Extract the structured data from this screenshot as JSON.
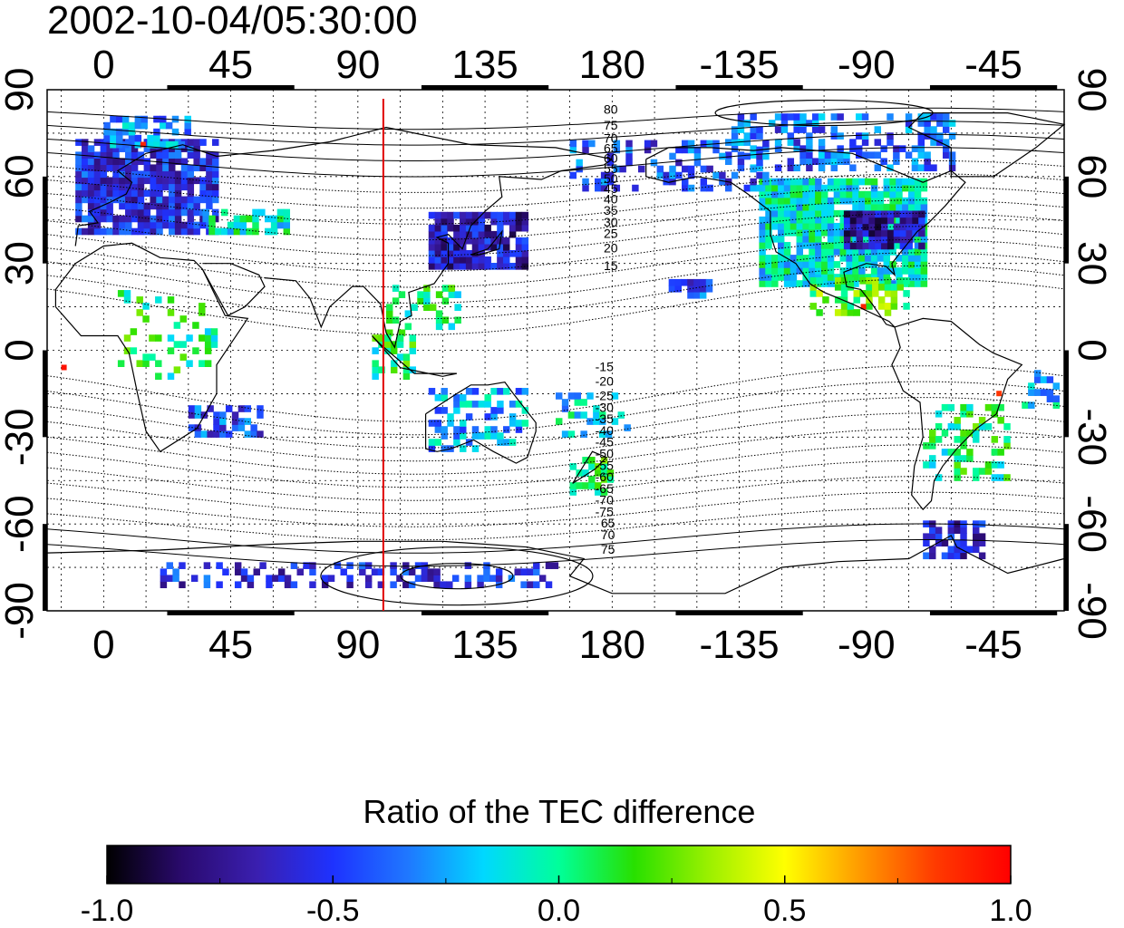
{
  "timestamp": "2002-10-04/05:30:00",
  "map": {
    "lon_ticks_top": [
      "0",
      "45",
      "90",
      "135",
      "180",
      "-135",
      "-90",
      "-45"
    ],
    "lon_ticks_bottom": [
      "0",
      "45",
      "90",
      "135",
      "180",
      "-135",
      "-90",
      "-45"
    ],
    "lat_ticks_left": [
      "90",
      "60",
      "30",
      "0",
      "-30",
      "-60",
      "-90"
    ],
    "lat_ticks_right": [
      "90",
      "60",
      "30",
      "0",
      "-30",
      "-60",
      "-90"
    ],
    "lon_range": [
      -20,
      340
    ],
    "lat_range": [
      -90,
      90
    ],
    "grid": true,
    "meridian_line_lon": 99,
    "meridian_line_color": "#e00000",
    "contour_labels_north": [
      "80",
      "75",
      "70",
      "65",
      "60",
      "55",
      "50",
      "45",
      "40",
      "35",
      "30",
      "25",
      "20",
      "15"
    ],
    "contour_labels_south": [
      "-15",
      "-20",
      "-25",
      "-30",
      "-35",
      "-40",
      "-45",
      "-50",
      "-55",
      "-60",
      "-65",
      "-70",
      "-75"
    ],
    "south_extra_labels": [
      "65",
      "70",
      "75"
    ]
  },
  "colorbar": {
    "title": "Ratio of the TEC difference",
    "ticks": [
      "-1.0",
      "-0.5",
      "0.0",
      "0.5",
      "1.0"
    ],
    "range": [
      -1.0,
      1.0
    ],
    "colors": [
      "#000000",
      "#2a0a6e",
      "#3a1fb0",
      "#1e32ff",
      "#1f78ff",
      "#00d8ff",
      "#00ff9a",
      "#28e000",
      "#9cf000",
      "#ffff00",
      "#ff9a00",
      "#ff3a00",
      "#ff0000"
    ]
  }
}
